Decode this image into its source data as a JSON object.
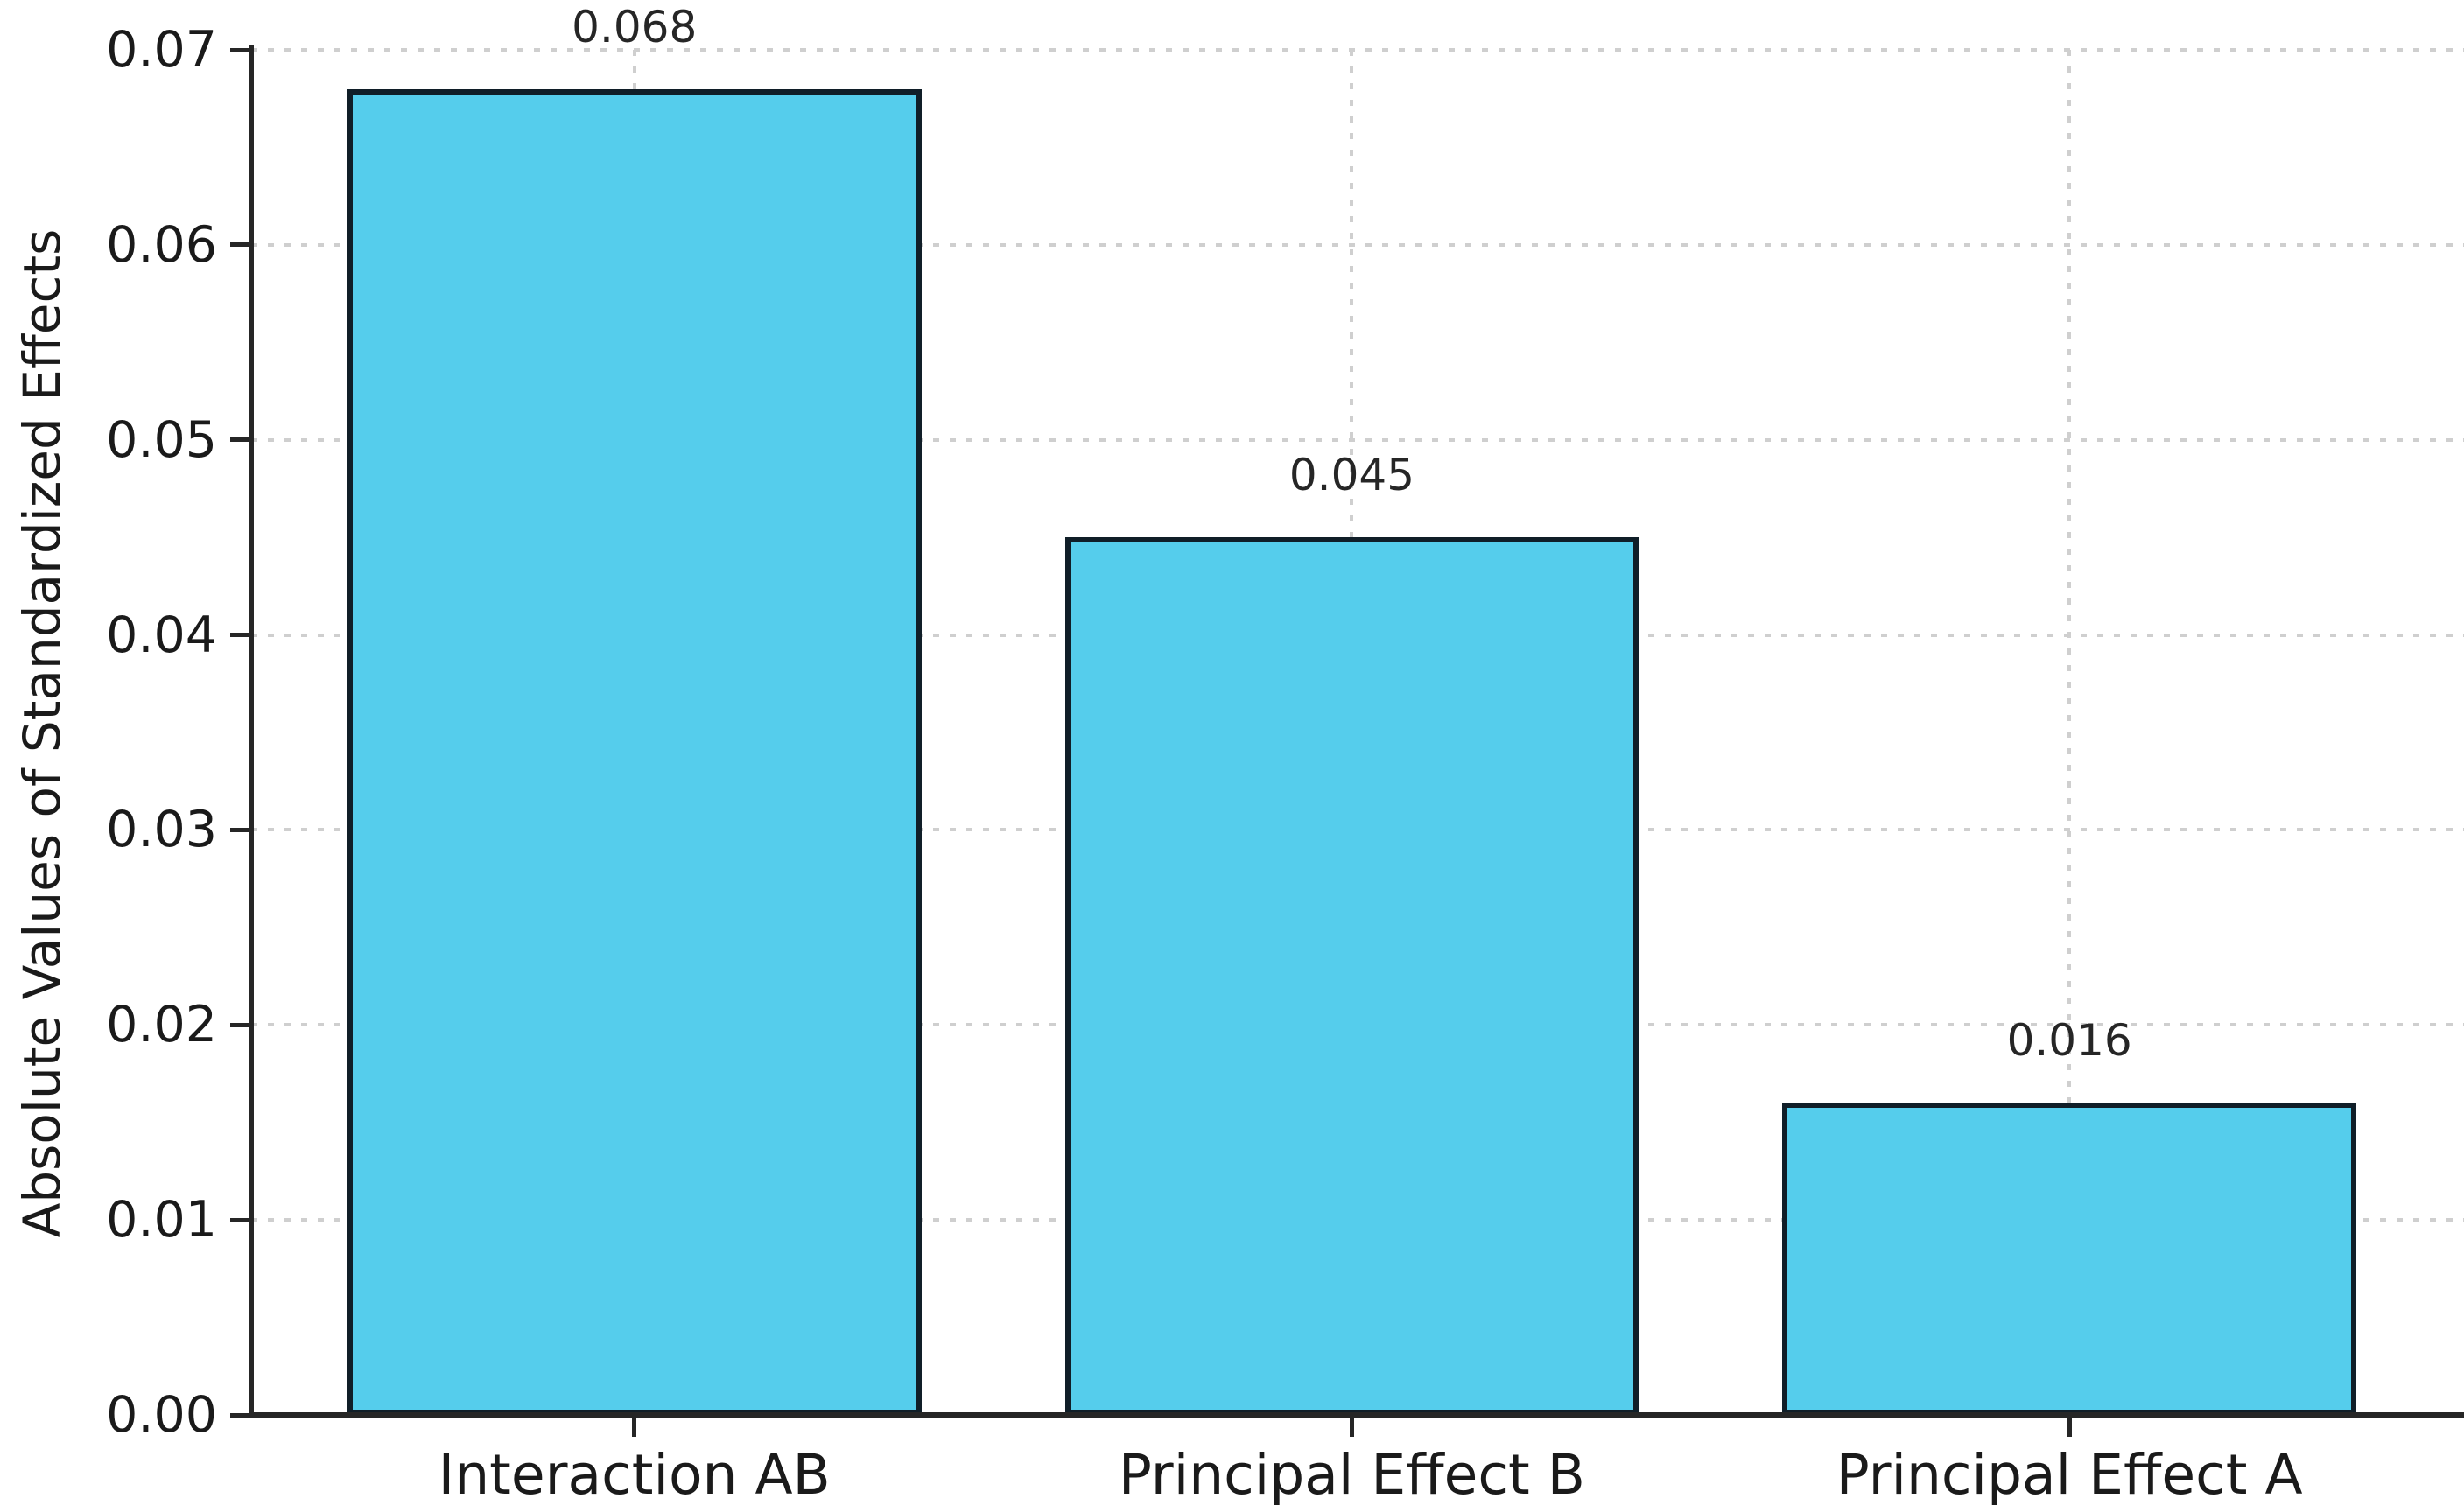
{
  "chart_data": {
    "type": "bar",
    "categories": [
      "Interaction AB",
      "Principal Effect B",
      "Principal Effect A"
    ],
    "values": [
      0.068,
      0.045,
      0.016
    ],
    "bar_labels": [
      "0.068",
      "0.045",
      "0.016"
    ],
    "title": "",
    "xlabel": "",
    "ylabel": "Absolute Values of Standardized Effects",
    "ylim": [
      0,
      0.07
    ],
    "yticks": [
      "0.00",
      "0.01",
      "0.02",
      "0.03",
      "0.04",
      "0.05",
      "0.06",
      "0.07"
    ],
    "grid": "dotted gridlines on both axes, drawn behind bars",
    "legend_position": "none",
    "colors": {
      "bar_fill": "#55cdec",
      "bar_edge": "#101e28",
      "gridline": "#cfcfcf",
      "axis": "#262626",
      "text": "#1a1a1a",
      "background": "#ffffff"
    }
  }
}
